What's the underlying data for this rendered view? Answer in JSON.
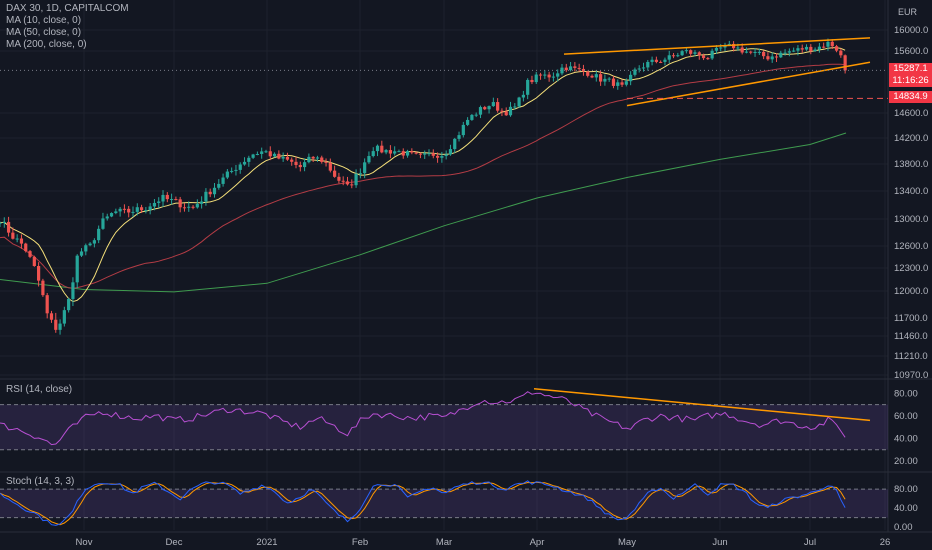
{
  "header": {
    "symbol_line": "DAX 30, 1D, CAPITALCOM",
    "ma_labels": [
      "MA (10, close, 0)",
      "MA (50, close, 0)",
      "MA (200, close, 0)"
    ],
    "currency": "EUR"
  },
  "indicators": {
    "rsi_label": "RSI (14, close)",
    "stoch_label": "Stoch (14, 3, 3)"
  },
  "price_badge": {
    "price": "15287.1",
    "countdown": "11:16:26"
  },
  "support_badge": {
    "price": "14834.9"
  },
  "colors": {
    "background": "#131722",
    "up": "#26a69a",
    "down": "#ef5350",
    "ma10": "#f5e07a",
    "ma50": "#b33c45",
    "ma200": "#3f9b4f",
    "trendline": "#ff9800",
    "rsi_line": "#b74fd2",
    "stoch_k": "#2962ff",
    "stoch_d": "#ff9800"
  },
  "chart_data": [
    {
      "type": "candlestick",
      "symbol": "DAX 30",
      "timeframe": "1D",
      "x_ticks": [
        "Nov",
        "Dec",
        "2021",
        "Feb",
        "Mar",
        "Apr",
        "May",
        "Jun",
        "Jul",
        "26"
      ],
      "y_ticks": [
        16000,
        15600,
        15287.1,
        14834.9,
        14600,
        14200,
        13800,
        13400,
        13000,
        12600,
        12300,
        12000,
        11700,
        11460,
        11210,
        10970
      ],
      "y_tick_labels": [
        "16000.0",
        "15600.0",
        "15287.1",
        "14834.9",
        "14600.0",
        "14200.0",
        "13800.0",
        "13400.0",
        "13000.0",
        "12600.0",
        "12300.0",
        "12000.0",
        "11700.0",
        "11460.0",
        "11210.0",
        "10970.0"
      ],
      "ylim": [
        10970,
        16200
      ],
      "x_range_days": [
        -28,
        268
      ],
      "x_tick_days": [
        0,
        30,
        61,
        92,
        120,
        151,
        181,
        212,
        242,
        267
      ],
      "anchors_price": [
        [
          -28,
          13000
        ],
        [
          -24,
          12750
        ],
        [
          -20,
          12600
        ],
        [
          -16,
          12250
        ],
        [
          -12,
          11700
        ],
        [
          -9,
          11550
        ],
        [
          -5,
          11900
        ],
        [
          -2,
          12500
        ],
        [
          2,
          12600
        ],
        [
          6,
          12950
        ],
        [
          10,
          13100
        ],
        [
          14,
          13100
        ],
        [
          20,
          13150
        ],
        [
          26,
          13300
        ],
        [
          30,
          13250
        ],
        [
          36,
          13150
        ],
        [
          42,
          13400
        ],
        [
          48,
          13650
        ],
        [
          52,
          13800
        ],
        [
          56,
          13950
        ],
        [
          60,
          14000
        ],
        [
          64,
          13900
        ],
        [
          68,
          13850
        ],
        [
          72,
          13750
        ],
        [
          76,
          13900
        ],
        [
          80,
          13850
        ],
        [
          84,
          13600
        ],
        [
          88,
          13450
        ],
        [
          92,
          13700
        ],
        [
          96,
          14050
        ],
        [
          100,
          14000
        ],
        [
          104,
          14000
        ],
        [
          108,
          13950
        ],
        [
          112,
          13900
        ],
        [
          116,
          13950
        ],
        [
          120,
          13950
        ],
        [
          124,
          14200
        ],
        [
          128,
          14500
        ],
        [
          132,
          14650
        ],
        [
          136,
          14750
        ],
        [
          140,
          14600
        ],
        [
          144,
          14700
        ],
        [
          148,
          15100
        ],
        [
          152,
          15200
        ],
        [
          156,
          15200
        ],
        [
          160,
          15350
        ],
        [
          164,
          15300
        ],
        [
          168,
          15250
        ],
        [
          172,
          15150
        ],
        [
          176,
          15100
        ],
        [
          180,
          15000
        ],
        [
          184,
          15300
        ],
        [
          188,
          15400
        ],
        [
          192,
          15450
        ],
        [
          196,
          15500
        ],
        [
          200,
          15600
        ],
        [
          204,
          15550
        ],
        [
          208,
          15500
        ],
        [
          212,
          15650
        ],
        [
          216,
          15700
        ],
        [
          220,
          15600
        ],
        [
          224,
          15550
        ],
        [
          228,
          15500
        ],
        [
          232,
          15550
        ],
        [
          236,
          15600
        ],
        [
          240,
          15650
        ],
        [
          244,
          15650
        ],
        [
          248,
          15750
        ],
        [
          250,
          15700
        ],
        [
          252,
          15550
        ],
        [
          254,
          15287.1
        ]
      ],
      "series": [
        {
          "name": "MA (10, close, 0)",
          "color": "#f5e07a"
        },
        {
          "name": "MA (50, close, 0)",
          "color": "#b33c45"
        },
        {
          "name": "MA (200, close, 0)",
          "color": "#3f9b4f",
          "points": [
            [
              -28,
              12150
            ],
            [
              0,
              12020
            ],
            [
              30,
              11990
            ],
            [
              61,
              12100
            ],
            [
              92,
              12480
            ],
            [
              120,
              12900
            ],
            [
              151,
              13300
            ],
            [
              181,
              13600
            ],
            [
              212,
              13870
            ],
            [
              242,
              14100
            ],
            [
              254,
              14280
            ]
          ]
        }
      ],
      "annotations": {
        "channel_upper": [
          [
            160,
            15550
          ],
          [
            262,
            15850
          ]
        ],
        "channel_lower": [
          [
            181,
            14720
          ],
          [
            262,
            15420
          ]
        ],
        "support_level": 14834.9
      }
    },
    {
      "type": "line",
      "name": "RSI (14, close)",
      "y_ticks": [
        80,
        60,
        40,
        20
      ],
      "y_tick_labels": [
        "80.00",
        "60.00",
        "40.00",
        "20.00"
      ],
      "ylim": [
        12,
        90
      ],
      "bands": [
        30,
        70
      ],
      "anchors": [
        [
          -28,
          52
        ],
        [
          -22,
          48
        ],
        [
          -14,
          40
        ],
        [
          -10,
          33
        ],
        [
          -6,
          45
        ],
        [
          0,
          58
        ],
        [
          6,
          64
        ],
        [
          12,
          60
        ],
        [
          18,
          58
        ],
        [
          24,
          60
        ],
        [
          30,
          56
        ],
        [
          36,
          58
        ],
        [
          42,
          62
        ],
        [
          48,
          66
        ],
        [
          54,
          64
        ],
        [
          60,
          62
        ],
        [
          66,
          55
        ],
        [
          72,
          50
        ],
        [
          78,
          58
        ],
        [
          84,
          50
        ],
        [
          88,
          44
        ],
        [
          92,
          55
        ],
        [
          96,
          62
        ],
        [
          104,
          60
        ],
        [
          110,
          58
        ],
        [
          116,
          60
        ],
        [
          120,
          58
        ],
        [
          126,
          66
        ],
        [
          132,
          74
        ],
        [
          138,
          72
        ],
        [
          144,
          74
        ],
        [
          150,
          82
        ],
        [
          154,
          78
        ],
        [
          158,
          76
        ],
        [
          162,
          72
        ],
        [
          166,
          66
        ],
        [
          172,
          58
        ],
        [
          178,
          52
        ],
        [
          182,
          48
        ],
        [
          186,
          56
        ],
        [
          192,
          60
        ],
        [
          198,
          58
        ],
        [
          204,
          56
        ],
        [
          208,
          60
        ],
        [
          214,
          62
        ],
        [
          220,
          56
        ],
        [
          226,
          52
        ],
        [
          232,
          56
        ],
        [
          238,
          52
        ],
        [
          244,
          50
        ],
        [
          248,
          56
        ],
        [
          252,
          50
        ],
        [
          254,
          40
        ]
      ],
      "annotations": {
        "trendline": [
          [
            150,
            84
          ],
          [
            262,
            56
          ]
        ]
      }
    },
    {
      "type": "line",
      "name": "Stoch (14, 3, 3)",
      "y_ticks": [
        80,
        40,
        0
      ],
      "y_tick_labels": [
        "80.00",
        "40.00",
        "0.00"
      ],
      "ylim": [
        -6,
        112
      ],
      "bands": [
        20,
        80
      ],
      "anchors": [
        [
          -28,
          70
        ],
        [
          -24,
          55
        ],
        [
          -20,
          40
        ],
        [
          -16,
          28
        ],
        [
          -12,
          10
        ],
        [
          -8,
          5
        ],
        [
          -4,
          30
        ],
        [
          0,
          80
        ],
        [
          4,
          92
        ],
        [
          8,
          95
        ],
        [
          12,
          88
        ],
        [
          16,
          70
        ],
        [
          20,
          85
        ],
        [
          24,
          92
        ],
        [
          28,
          75
        ],
        [
          32,
          60
        ],
        [
          36,
          80
        ],
        [
          40,
          92
        ],
        [
          44,
          95
        ],
        [
          48,
          88
        ],
        [
          52,
          70
        ],
        [
          56,
          80
        ],
        [
          60,
          90
        ],
        [
          64,
          72
        ],
        [
          68,
          50
        ],
        [
          72,
          65
        ],
        [
          76,
          80
        ],
        [
          80,
          55
        ],
        [
          84,
          30
        ],
        [
          88,
          12
        ],
        [
          92,
          40
        ],
        [
          96,
          85
        ],
        [
          100,
          92
        ],
        [
          104,
          88
        ],
        [
          108,
          60
        ],
        [
          112,
          75
        ],
        [
          116,
          85
        ],
        [
          120,
          70
        ],
        [
          124,
          85
        ],
        [
          128,
          92
        ],
        [
          132,
          95
        ],
        [
          136,
          90
        ],
        [
          140,
          80
        ],
        [
          144,
          90
        ],
        [
          148,
          95
        ],
        [
          152,
          92
        ],
        [
          156,
          88
        ],
        [
          160,
          78
        ],
        [
          164,
          70
        ],
        [
          168,
          60
        ],
        [
          172,
          40
        ],
        [
          176,
          20
        ],
        [
          180,
          15
        ],
        [
          184,
          40
        ],
        [
          188,
          70
        ],
        [
          192,
          85
        ],
        [
          196,
          60
        ],
        [
          200,
          75
        ],
        [
          204,
          90
        ],
        [
          208,
          70
        ],
        [
          212,
          88
        ],
        [
          216,
          90
        ],
        [
          220,
          75
        ],
        [
          224,
          50
        ],
        [
          228,
          40
        ],
        [
          232,
          55
        ],
        [
          236,
          62
        ],
        [
          240,
          68
        ],
        [
          244,
          75
        ],
        [
          248,
          90
        ],
        [
          250,
          85
        ],
        [
          252,
          60
        ],
        [
          254,
          35
        ]
      ]
    }
  ]
}
